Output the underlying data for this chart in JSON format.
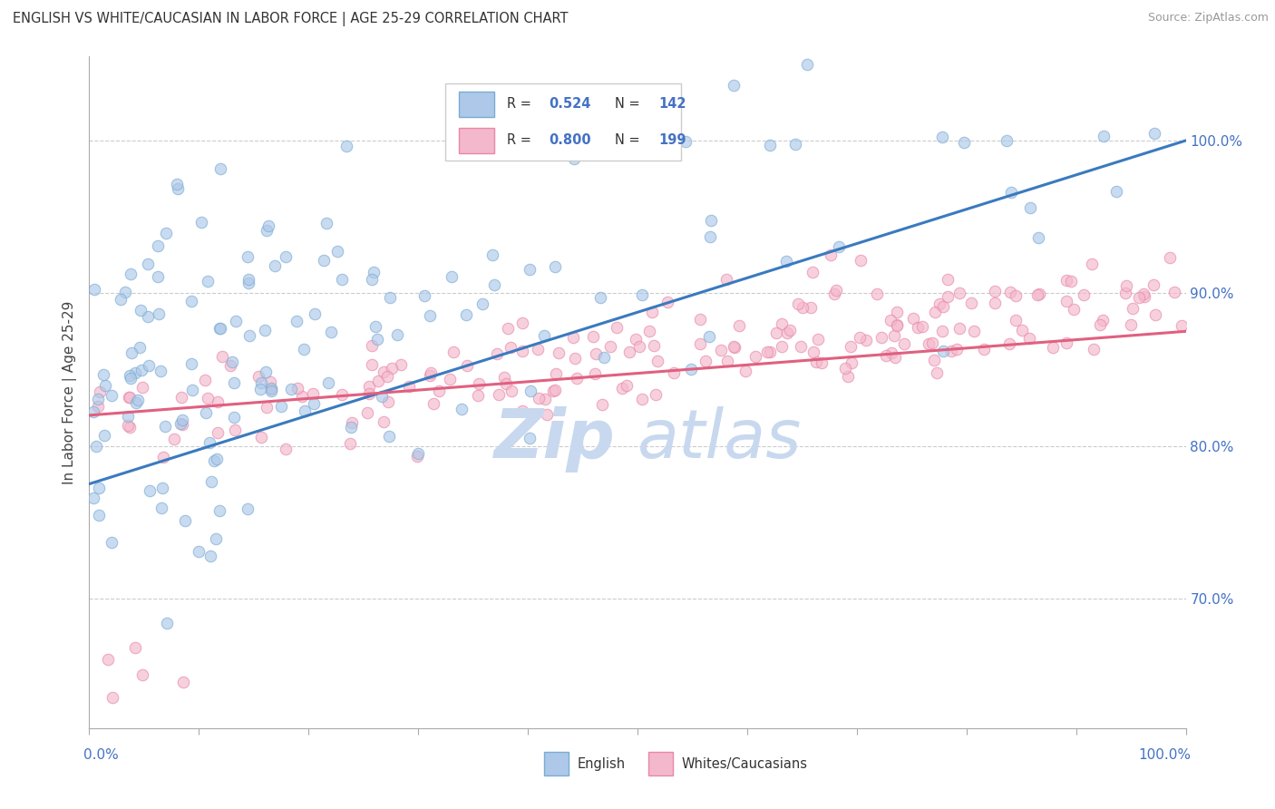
{
  "title": "ENGLISH VS WHITE/CAUCASIAN IN LABOR FORCE | AGE 25-29 CORRELATION CHART",
  "source": "Source: ZipAtlas.com",
  "ylabel": "In Labor Force | Age 25-29",
  "right_ytick_labels": [
    "70.0%",
    "80.0%",
    "90.0%",
    "100.0%"
  ],
  "right_ytick_values": [
    0.7,
    0.8,
    0.9,
    1.0
  ],
  "xlim": [
    0.0,
    1.0
  ],
  "ylim": [
    0.615,
    1.055
  ],
  "series": [
    {
      "name": "English",
      "R": 0.524,
      "N": 142,
      "color": "#adc8e8",
      "edge_color": "#7aacd4",
      "line_color": "#3a7abf",
      "alpha": 0.65,
      "marker_size": 9
    },
    {
      "name": "Whites/Caucasians",
      "R": 0.8,
      "N": 199,
      "color": "#f4b8cc",
      "edge_color": "#e888a8",
      "line_color": "#e06080",
      "alpha": 0.65,
      "marker_size": 9
    }
  ],
  "legend_color": "#4472c4",
  "watermark_zip": "Zip",
  "watermark_atlas": "atlas",
  "watermark_color": "#c8d8ee",
  "background_color": "#ffffff",
  "grid_color": "#cccccc"
}
